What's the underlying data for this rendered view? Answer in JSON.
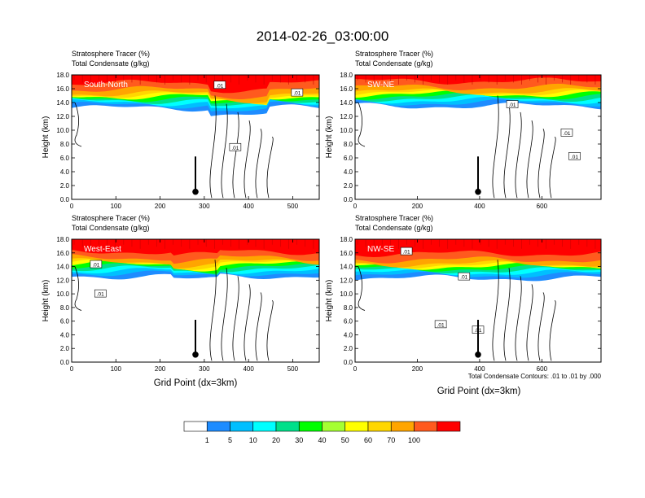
{
  "figure": {
    "title": "2014-02-26_03:00:00",
    "xlabel": "Grid Point (dx=3km)",
    "contour_note": "Total Condensate Contours: .01 to .01 by .000"
  },
  "chart_data": [
    {
      "type": "contour",
      "panel_label": "South-North",
      "subtitle_line1": "Stratosphere Tracer   (%)",
      "subtitle_line2": "Total Condensate   (g/kg)",
      "ylabel": "Height (km)",
      "xlim": [
        0,
        560
      ],
      "ylim": [
        0,
        18
      ],
      "xticks": [
        0,
        100,
        200,
        300,
        400,
        500
      ],
      "yticks": [
        0,
        2,
        4,
        6,
        8,
        10,
        12,
        14,
        16,
        18
      ],
      "marker_x": 280,
      "contour_labels": [
        {
          "x": 335,
          "y": 16.5,
          "text": ".01"
        },
        {
          "x": 510,
          "y": 15.4,
          "text": ".01"
        },
        {
          "x": 370,
          "y": 7.5,
          "text": ".01"
        }
      ]
    },
    {
      "type": "contour",
      "panel_label": "SW-NE",
      "subtitle_line1": "Stratosphere Tracer   (%)",
      "subtitle_line2": "Total Condensate   (g/kg)",
      "ylabel": "Height (km)",
      "xlim": [
        0,
        790
      ],
      "ylim": [
        0,
        18
      ],
      "xticks": [
        0,
        200,
        400,
        600
      ],
      "yticks": [
        0,
        2,
        4,
        6,
        8,
        10,
        12,
        14,
        16,
        18
      ],
      "marker_x": 395,
      "contour_labels": [
        {
          "x": 505,
          "y": 13.7,
          "text": ".01"
        },
        {
          "x": 680,
          "y": 9.6,
          "text": ".01"
        },
        {
          "x": 705,
          "y": 6.2,
          "text": ".01"
        }
      ]
    },
    {
      "type": "contour",
      "panel_label": "West-East",
      "subtitle_line1": "Stratosphere Tracer   (%)",
      "subtitle_line2": "Total Condensate   (g/kg)",
      "ylabel": "Height (km)",
      "xlim": [
        0,
        560
      ],
      "ylim": [
        0,
        18
      ],
      "xticks": [
        0,
        100,
        200,
        300,
        400,
        500
      ],
      "yticks": [
        0,
        2,
        4,
        6,
        8,
        10,
        12,
        14,
        16,
        18
      ],
      "marker_x": 280,
      "contour_labels": [
        {
          "x": 55,
          "y": 14.3,
          "text": ".01"
        },
        {
          "x": 65,
          "y": 10.0,
          "text": ".01"
        }
      ]
    },
    {
      "type": "contour",
      "panel_label": "NW-SE",
      "subtitle_line1": "Stratosphere Tracer   (%)",
      "subtitle_line2": "Total Condensate   (g/kg)",
      "ylabel": "Height (km)",
      "xlim": [
        0,
        790
      ],
      "ylim": [
        0,
        18
      ],
      "xticks": [
        0,
        200,
        400,
        600
      ],
      "yticks": [
        0,
        2,
        4,
        6,
        8,
        10,
        12,
        14,
        16,
        18
      ],
      "marker_x": 395,
      "contour_labels": [
        {
          "x": 165,
          "y": 16.2,
          "text": ".01"
        },
        {
          "x": 350,
          "y": 12.5,
          "text": ".01"
        },
        {
          "x": 275,
          "y": 5.5,
          "text": ".01"
        },
        {
          "x": 395,
          "y": 4.7,
          "text": ".01"
        }
      ]
    }
  ],
  "colorbar": {
    "levels": [
      "1",
      "5",
      "10",
      "20",
      "30",
      "40",
      "50",
      "60",
      "70",
      "100"
    ],
    "colors": [
      "#ffffff",
      "#1e8cff",
      "#00bfff",
      "#00ffff",
      "#00e08a",
      "#00ff00",
      "#a5ff32",
      "#ffff00",
      "#ffd700",
      "#ffa500",
      "#ff5a1e",
      "#ff0000"
    ]
  }
}
